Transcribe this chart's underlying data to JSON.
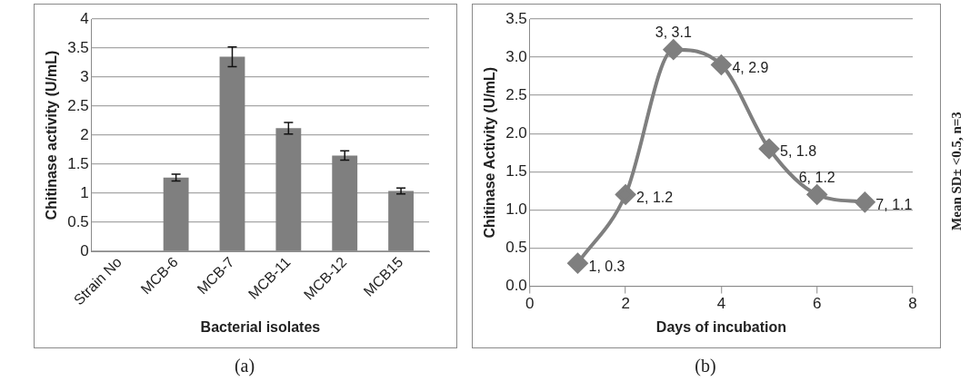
{
  "chart_data": [
    {
      "type": "bar",
      "xlabel": "Bacterial isolates",
      "ylabel": "Chitinase activity (U/mL)",
      "categories": [
        "Strain No",
        "MCB-6",
        "MCB-7",
        "MCB-11",
        "MCB-12",
        "MCB15"
      ],
      "values": [
        null,
        1.27,
        3.35,
        2.12,
        1.65,
        1.04
      ],
      "errors": [
        null,
        0.06,
        0.17,
        0.1,
        0.08,
        0.05
      ],
      "color": "#7f7f7f",
      "ylim": [
        0,
        4
      ],
      "yticks": [
        0,
        0.5,
        1,
        1.5,
        2,
        2.5,
        3,
        3.5,
        4
      ],
      "grid": "y",
      "legend": false,
      "annotations": [
        "(a)"
      ]
    },
    {
      "type": "line",
      "xlabel": "Days of incubation",
      "ylabel": "Chitinase Activity (U/mL)",
      "x": [
        1,
        2,
        3,
        4,
        5,
        6,
        7
      ],
      "series": [
        {
          "color": "#7f7f7f",
          "values": [
            0.3,
            1.2,
            3.1,
            2.9,
            1.8,
            1.2,
            1.1
          ],
          "value_labels": [
            "1, 0.3",
            "2, 1.2",
            "3, 3.1",
            "4, 2.9",
            "5, 1.8",
            "6, 1.2",
            "7, 1.1"
          ]
        }
      ],
      "marker": "diamond",
      "line_style": "solid",
      "xlim": [
        0,
        8
      ],
      "xticks": [
        0,
        2,
        4,
        6,
        8
      ],
      "ylim": [
        0,
        3.5
      ],
      "yticks": [
        {
          "value": 0,
          "label": "0.0"
        },
        {
          "value": 0.5,
          "label": "0.5"
        },
        {
          "value": 1,
          "label": "1.0"
        },
        {
          "value": 1.5,
          "label": "1.5"
        },
        {
          "value": 2,
          "label": "2.0"
        },
        {
          "value": 2.5,
          "label": "2.5"
        },
        {
          "value": 3,
          "label": "3.0"
        },
        {
          "value": 3.5,
          "label": "3.5"
        }
      ],
      "grid": "y",
      "legend": false,
      "annotations": [
        "(b)",
        "Mean SD± <0.5, n=3"
      ]
    }
  ]
}
